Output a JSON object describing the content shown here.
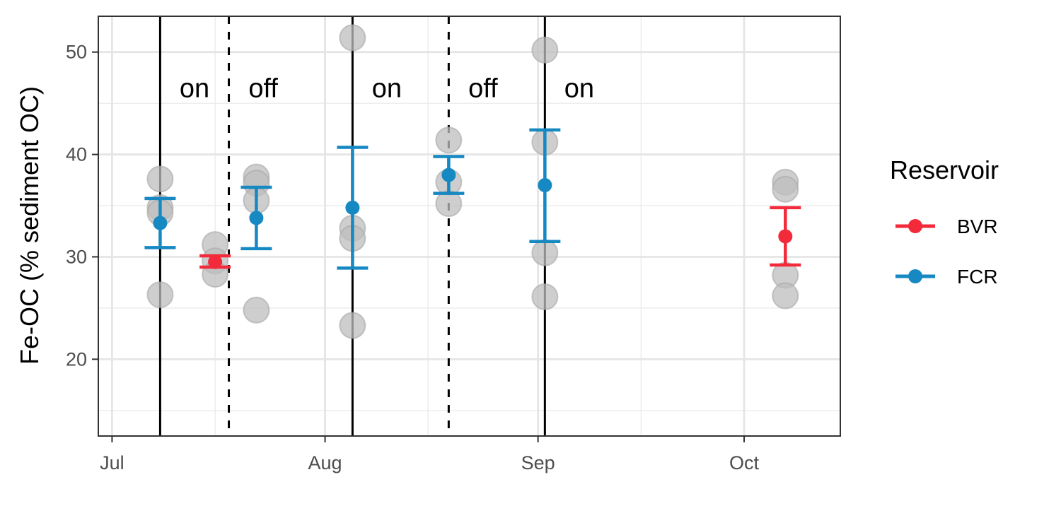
{
  "chart_data": {
    "type": "scatter",
    "title": "",
    "xlabel": "",
    "ylabel": "Fe-OC (% sediment OC)",
    "x_type": "date",
    "xlim": [
      "2019-06-29",
      "2019-10-15"
    ],
    "ylim": [
      12.5,
      53.5
    ],
    "x_ticks": [
      {
        "date": "2019-07-01",
        "label": "Jul"
      },
      {
        "date": "2019-08-01",
        "label": "Aug"
      },
      {
        "date": "2019-09-01",
        "label": "Sep"
      },
      {
        "date": "2019-10-01",
        "label": "Oct"
      }
    ],
    "y_ticks": [
      20,
      30,
      40,
      50
    ],
    "grid": true,
    "legend": {
      "title": "Reservoir",
      "position": "right",
      "entries": [
        {
          "name": "BVR",
          "color": "#f22a3a"
        },
        {
          "name": "FCR",
          "color": "#1688c2"
        }
      ]
    },
    "series": [
      {
        "name": "BVR",
        "color": "#f22a3a",
        "points": [
          {
            "date": "2019-07-16",
            "mean": 29.5,
            "lo": 29.0,
            "hi": 30.1
          },
          {
            "date": "2019-10-07",
            "mean": 32.0,
            "lo": 29.2,
            "hi": 34.8
          }
        ]
      },
      {
        "name": "FCR",
        "color": "#1688c2",
        "points": [
          {
            "date": "2019-07-08",
            "mean": 33.3,
            "lo": 30.9,
            "hi": 35.7
          },
          {
            "date": "2019-07-22",
            "mean": 33.8,
            "lo": 30.8,
            "hi": 36.8
          },
          {
            "date": "2019-08-05",
            "mean": 34.8,
            "lo": 28.9,
            "hi": 40.7
          },
          {
            "date": "2019-08-19",
            "mean": 38.0,
            "lo": 36.2,
            "hi": 39.8
          },
          {
            "date": "2019-09-02",
            "mean": 37.0,
            "lo": 31.5,
            "hi": 42.4
          }
        ]
      }
    ],
    "raw_points": [
      {
        "date": "2019-07-08",
        "values": [
          37.6,
          34.8,
          34.3,
          26.3
        ]
      },
      {
        "date": "2019-07-16",
        "values": [
          31.2,
          29.6,
          28.3
        ]
      },
      {
        "date": "2019-07-22",
        "values": [
          37.8,
          37.2,
          35.5,
          24.8
        ]
      },
      {
        "date": "2019-08-05",
        "values": [
          51.4,
          32.8,
          31.8,
          23.3
        ]
      },
      {
        "date": "2019-08-19",
        "values": [
          41.4,
          37.3,
          35.2
        ]
      },
      {
        "date": "2019-09-02",
        "values": [
          50.2,
          41.2,
          30.4,
          26.1
        ]
      },
      {
        "date": "2019-10-07",
        "values": [
          37.3,
          36.6,
          28.2,
          26.2
        ]
      }
    ],
    "vlines": [
      {
        "date": "2019-07-08",
        "style": "solid"
      },
      {
        "date": "2019-07-18",
        "style": "dashed"
      },
      {
        "date": "2019-08-05",
        "style": "solid"
      },
      {
        "date": "2019-08-19",
        "style": "dashed"
      },
      {
        "date": "2019-09-02",
        "style": "solid"
      }
    ],
    "annotations": [
      {
        "text": "on",
        "date": "2019-07-13",
        "y": 46.5
      },
      {
        "text": "off",
        "date": "2019-07-23",
        "y": 46.5
      },
      {
        "text": "on",
        "date": "2019-08-10",
        "y": 46.5
      },
      {
        "text": "off",
        "date": "2019-08-24",
        "y": 46.5
      },
      {
        "text": "on",
        "date": "2019-09-07",
        "y": 46.5
      }
    ]
  }
}
